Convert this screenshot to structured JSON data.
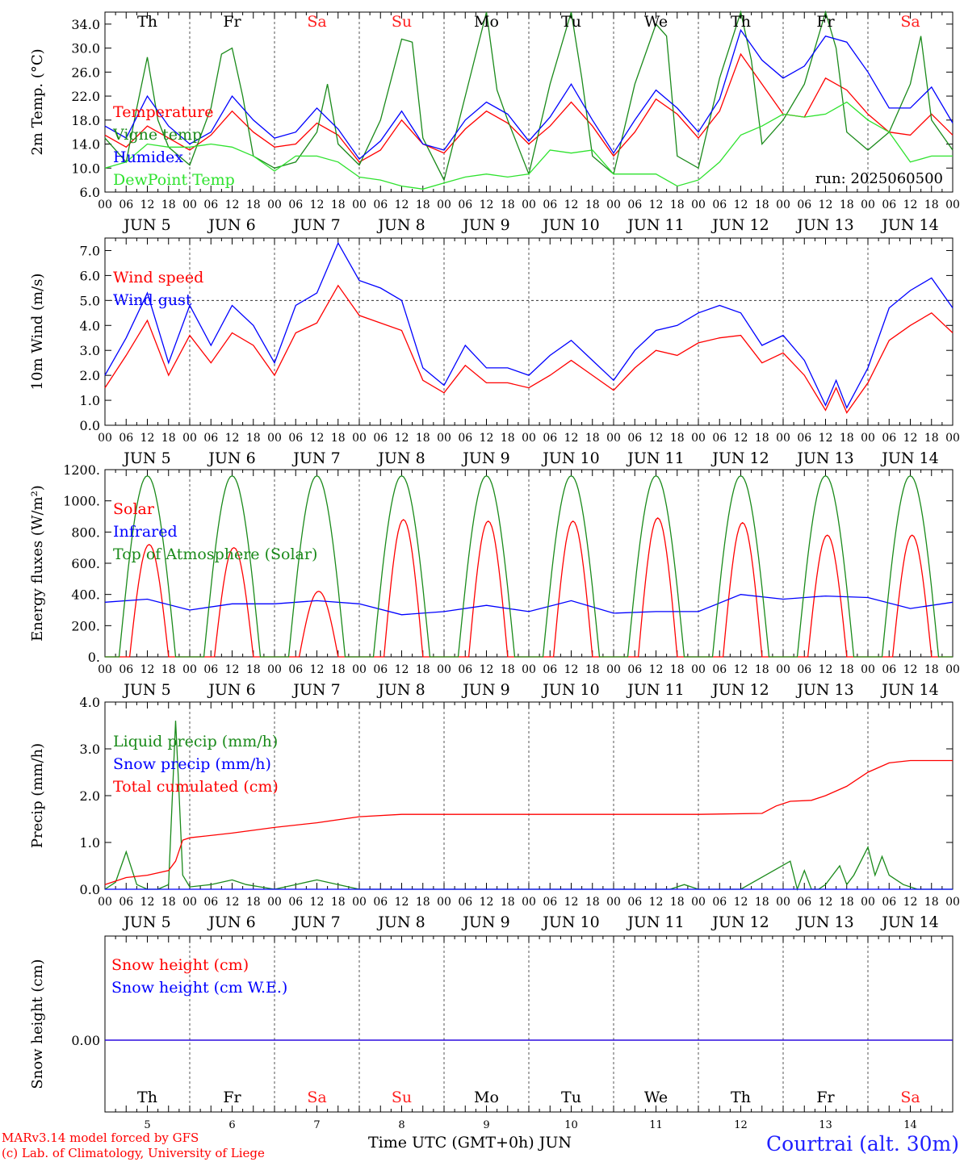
{
  "days": {
    "weekday": [
      "Th",
      "Fr",
      "Sa",
      "Su",
      "Mo",
      "Tu",
      "We",
      "Th",
      "Fr",
      "Sa"
    ],
    "weekday_color": [
      "#000000",
      "#000000",
      "#ff2020",
      "#ff2020",
      "#000000",
      "#000000",
      "#000000",
      "#000000",
      "#000000",
      "#ff2020"
    ],
    "month_day": [
      "JUN  5",
      "JUN  6",
      "JUN  7",
      "JUN  8",
      "JUN  9",
      "JUN 10",
      "JUN 11",
      "JUN 12",
      "JUN 13",
      "JUN 14"
    ],
    "day_number": [
      "5",
      "6",
      "7",
      "8",
      "9",
      "10",
      "11",
      "12",
      "13",
      "14"
    ],
    "hour_ticks": [
      "00",
      "06",
      "12",
      "18"
    ],
    "end_tick": "00"
  },
  "chart_data": [
    {
      "type": "line",
      "ylabel": "2m Temp. (°C)",
      "ylim": [
        6,
        36
      ],
      "yticks": [
        "6.0",
        "10.0",
        "14.0",
        "18.0",
        "22.0",
        "26.0",
        "30.0",
        "34.0"
      ],
      "x_unit": "hours since JUN 5 00 UTC",
      "annotation": "run: 2025060500",
      "series": [
        {
          "name": "Temperature",
          "color": "#ff0000",
          "x": [
            0,
            6,
            12,
            18,
            24,
            30,
            36,
            42,
            48,
            54,
            60,
            66,
            72,
            78,
            84,
            90,
            96,
            102,
            108,
            114,
            120,
            126,
            132,
            138,
            144,
            150,
            156,
            162,
            168,
            174,
            180,
            186,
            192,
            198,
            204,
            210,
            216,
            222,
            228,
            234,
            240
          ],
          "values": [
            15.5,
            13.5,
            17,
            15,
            13,
            15.5,
            19.5,
            16,
            13.5,
            14,
            17.5,
            15.5,
            11,
            13,
            18,
            14,
            12.5,
            16.5,
            19.5,
            17.5,
            14,
            17,
            21,
            17,
            12,
            16,
            21.5,
            19,
            15,
            19.5,
            29,
            24,
            19,
            18.5,
            25,
            23,
            19,
            16,
            15.5,
            19,
            15.5
          ]
        },
        {
          "name": "Vigne temp",
          "color": "#1a8a1a",
          "x": [
            0,
            6,
            9,
            12,
            15,
            18,
            24,
            30,
            33,
            36,
            39,
            42,
            48,
            54,
            60,
            63,
            66,
            72,
            78,
            84,
            87,
            90,
            96,
            102,
            108,
            111,
            114,
            120,
            126,
            132,
            135,
            138,
            144,
            150,
            156,
            159,
            162,
            168,
            174,
            180,
            183,
            186,
            192,
            198,
            204,
            207,
            210,
            216,
            222,
            228,
            231,
            234,
            240
          ],
          "values": [
            15,
            11,
            20,
            28.5,
            18,
            13.5,
            10.5,
            20,
            29,
            30,
            22,
            12,
            10,
            11,
            16,
            24,
            14,
            10.5,
            18,
            31.5,
            31,
            15,
            8,
            22,
            36,
            23,
            18,
            9,
            24,
            36,
            25,
            12,
            9,
            24,
            34,
            32,
            12,
            10,
            25,
            36,
            28,
            14,
            18,
            24,
            37,
            30,
            16,
            13,
            16,
            24,
            32,
            18,
            13
          ]
        },
        {
          "name": "Humidex",
          "color": "#0000ff",
          "x": [
            0,
            6,
            12,
            18,
            24,
            30,
            36,
            42,
            48,
            54,
            60,
            66,
            72,
            78,
            84,
            90,
            96,
            102,
            108,
            114,
            120,
            126,
            132,
            138,
            144,
            150,
            156,
            162,
            168,
            174,
            180,
            186,
            192,
            198,
            204,
            210,
            216,
            222,
            228,
            234,
            240
          ],
          "values": [
            17,
            15,
            22,
            17,
            14,
            16,
            22,
            18,
            15,
            16,
            20,
            16.5,
            11.5,
            14.5,
            19.5,
            14,
            13,
            18,
            21,
            19,
            14.5,
            18.5,
            24,
            18,
            12.5,
            18,
            23,
            20,
            16,
            21.5,
            33,
            28,
            25,
            27,
            32,
            31,
            26,
            20,
            20,
            23.5,
            17.5
          ]
        },
        {
          "name": "DewPoint Temp",
          "color": "#2ee22e",
          "x": [
            0,
            6,
            12,
            18,
            24,
            30,
            36,
            42,
            48,
            54,
            60,
            66,
            72,
            78,
            84,
            90,
            96,
            102,
            108,
            114,
            120,
            126,
            132,
            138,
            144,
            150,
            156,
            162,
            168,
            174,
            180,
            186,
            192,
            198,
            204,
            210,
            216,
            222,
            228,
            234,
            240
          ],
          "values": [
            10,
            11,
            14,
            13.5,
            13.5,
            14,
            13.5,
            12,
            9.5,
            12,
            12,
            11,
            8.5,
            8,
            7,
            6.5,
            7.5,
            8.5,
            9,
            8.5,
            9,
            13,
            12.5,
            13,
            9,
            9,
            9,
            7,
            8,
            11,
            15.5,
            17,
            19,
            18.5,
            19,
            21,
            18,
            16,
            11,
            12,
            12
          ]
        }
      ],
      "legend": [
        "Temperature",
        "Vigne temp",
        "Humidex",
        "DewPoint Temp"
      ],
      "legend_colors": [
        "#ff0000",
        "#1a8a1a",
        "#0000ff",
        "#2ee22e"
      ]
    },
    {
      "type": "line",
      "ylabel": "10m Wind (m/s)",
      "ylim": [
        0,
        7.5
      ],
      "yticks": [
        "0.0",
        "1.0",
        "2.0",
        "3.0",
        "4.0",
        "5.0",
        "6.0",
        "7.0"
      ],
      "reference_line": 5.0,
      "series": [
        {
          "name": "Wind speed",
          "color": "#ff0000",
          "x": [
            0,
            6,
            12,
            18,
            24,
            30,
            36,
            42,
            48,
            54,
            60,
            66,
            72,
            78,
            84,
            90,
            96,
            102,
            108,
            114,
            120,
            126,
            132,
            138,
            144,
            150,
            156,
            162,
            168,
            174,
            180,
            186,
            192,
            198,
            204,
            207,
            210,
            216,
            222,
            228,
            234,
            240
          ],
          "values": [
            1.5,
            2.8,
            4.2,
            2.0,
            3.6,
            2.5,
            3.7,
            3.2,
            2.0,
            3.7,
            4.1,
            5.6,
            4.4,
            4.1,
            3.8,
            1.8,
            1.3,
            2.4,
            1.7,
            1.7,
            1.5,
            2.0,
            2.6,
            2.0,
            1.4,
            2.3,
            3.0,
            2.8,
            3.3,
            3.5,
            3.6,
            2.5,
            2.9,
            2.0,
            0.6,
            1.5,
            0.5,
            1.7,
            3.4,
            4.0,
            4.5,
            3.7
          ]
        },
        {
          "name": "Wind gust",
          "color": "#0000ff",
          "x": [
            0,
            6,
            12,
            18,
            24,
            30,
            36,
            42,
            48,
            54,
            60,
            66,
            72,
            78,
            84,
            90,
            96,
            102,
            108,
            114,
            120,
            126,
            132,
            138,
            144,
            150,
            156,
            162,
            168,
            174,
            180,
            186,
            192,
            198,
            204,
            207,
            210,
            216,
            222,
            228,
            234,
            240
          ],
          "values": [
            2.0,
            3.5,
            5.3,
            2.5,
            4.8,
            3.2,
            4.8,
            4.0,
            2.5,
            4.8,
            5.3,
            7.3,
            5.8,
            5.5,
            5.0,
            2.3,
            1.6,
            3.2,
            2.3,
            2.3,
            2.0,
            2.8,
            3.4,
            2.6,
            1.8,
            3.0,
            3.8,
            4.0,
            4.5,
            4.8,
            4.5,
            3.2,
            3.6,
            2.6,
            0.8,
            1.8,
            0.7,
            2.3,
            4.7,
            5.4,
            5.9,
            4.7
          ]
        }
      ],
      "legend": [
        "Wind speed",
        "Wind gust"
      ],
      "legend_colors": [
        "#ff0000",
        "#0000ff"
      ]
    },
    {
      "type": "line",
      "ylabel": "Energy fluxes (W/m²)",
      "ylim": [
        0,
        1200
      ],
      "yticks": [
        "0.",
        "200.",
        "400.",
        "600.",
        "800.",
        "1000.",
        "1200."
      ],
      "series": [
        {
          "name": "Solar",
          "color": "#ff0000",
          "peaks": [
            720,
            700,
            420,
            880,
            870,
            870,
            890,
            860,
            780,
            780
          ]
        },
        {
          "name": "Infrared",
          "color": "#0000ff",
          "x": [
            0,
            12,
            24,
            36,
            48,
            60,
            72,
            84,
            96,
            108,
            120,
            132,
            144,
            156,
            168,
            180,
            192,
            204,
            216,
            228,
            240
          ],
          "values": [
            350,
            370,
            300,
            340,
            340,
            360,
            340,
            270,
            290,
            330,
            290,
            360,
            280,
            290,
            290,
            400,
            370,
            390,
            380,
            310,
            350
          ]
        },
        {
          "name": "Top of Atmosphere (Solar)",
          "color": "#1a8a1a",
          "peaks": [
            1160,
            1160,
            1160,
            1160,
            1160,
            1160,
            1160,
            1160,
            1160,
            1160
          ]
        }
      ],
      "legend": [
        "Solar",
        "Infrared",
        "Top of Atmosphere (Solar)"
      ],
      "legend_colors": [
        "#ff0000",
        "#0000ff",
        "#1a8a1a"
      ]
    },
    {
      "type": "line",
      "ylabel": "Precip (mm/h)",
      "ylim": [
        0,
        4
      ],
      "yticks": [
        "0.0",
        "1.0",
        "2.0",
        "3.0",
        "4.0"
      ],
      "series": [
        {
          "name": "Liquid precip (mm/h)",
          "color": "#1a8a1a",
          "x": [
            0,
            3,
            6,
            9,
            12,
            15,
            18,
            20,
            21,
            22,
            24,
            30,
            36,
            40,
            44,
            48,
            54,
            60,
            66,
            72,
            78,
            84,
            90,
            96,
            160,
            164,
            168,
            180,
            194,
            196,
            198,
            200,
            202,
            204,
            208,
            210,
            212,
            214,
            216,
            218,
            220,
            222,
            226,
            230,
            240
          ],
          "values": [
            0,
            0.15,
            0.8,
            0.1,
            0,
            0,
            0.1,
            3.6,
            2.0,
            0.3,
            0.05,
            0.1,
            0.2,
            0.1,
            0.05,
            0,
            0.1,
            0.2,
            0.1,
            0,
            0,
            0,
            0,
            0,
            0,
            0.1,
            0,
            0,
            0.6,
            0,
            0.4,
            0,
            0,
            0.1,
            0.5,
            0.1,
            0.3,
            0.6,
            0.9,
            0.3,
            0.7,
            0.3,
            0.1,
            0,
            0
          ]
        },
        {
          "name": "Snow precip (mm/h)",
          "color": "#0000ff",
          "x": [
            0,
            240
          ],
          "values": [
            0,
            0
          ]
        },
        {
          "name": "Total cumulated (cm)",
          "color": "#ff0000",
          "x": [
            0,
            6,
            12,
            18,
            20,
            22,
            24,
            36,
            48,
            60,
            72,
            84,
            96,
            120,
            144,
            168,
            186,
            190,
            194,
            200,
            204,
            210,
            216,
            222,
            228,
            240
          ],
          "values": [
            0.1,
            0.25,
            0.3,
            0.4,
            0.6,
            1.05,
            1.1,
            1.2,
            1.32,
            1.42,
            1.55,
            1.6,
            1.6,
            1.6,
            1.6,
            1.6,
            1.62,
            1.78,
            1.88,
            1.9,
            2.0,
            2.2,
            2.5,
            2.7,
            2.75,
            2.75
          ]
        }
      ],
      "legend": [
        "Liquid precip (mm/h)",
        "Snow precip (mm/h)",
        "Total cumulated (cm)"
      ],
      "legend_colors": [
        "#1a8a1a",
        "#0000ff",
        "#ff0000"
      ]
    },
    {
      "type": "line",
      "ylabel": "Snow height (cm)",
      "ytick": "0.00",
      "series": [
        {
          "name": "Snow height (cm)",
          "color": "#ff0000",
          "x": [
            0,
            240
          ],
          "values": [
            0,
            0
          ]
        },
        {
          "name": "Snow height (cm W.E.)",
          "color": "#0000ff",
          "x": [
            0,
            240
          ],
          "values": [
            0,
            0
          ]
        }
      ],
      "legend": [
        "Snow height (cm)",
        "Snow height (cm W.E.)"
      ],
      "legend_colors": [
        "#ff0000",
        "#0000ff"
      ]
    }
  ],
  "footer": {
    "model_line": "MARv3.14 model forced by GFS",
    "credit_line": "(c) Lab. of Climatology, University of Liege",
    "xaxis_title": "Time UTC (GMT+0h) JUN",
    "station": "Courtrai (alt. 30m)"
  }
}
